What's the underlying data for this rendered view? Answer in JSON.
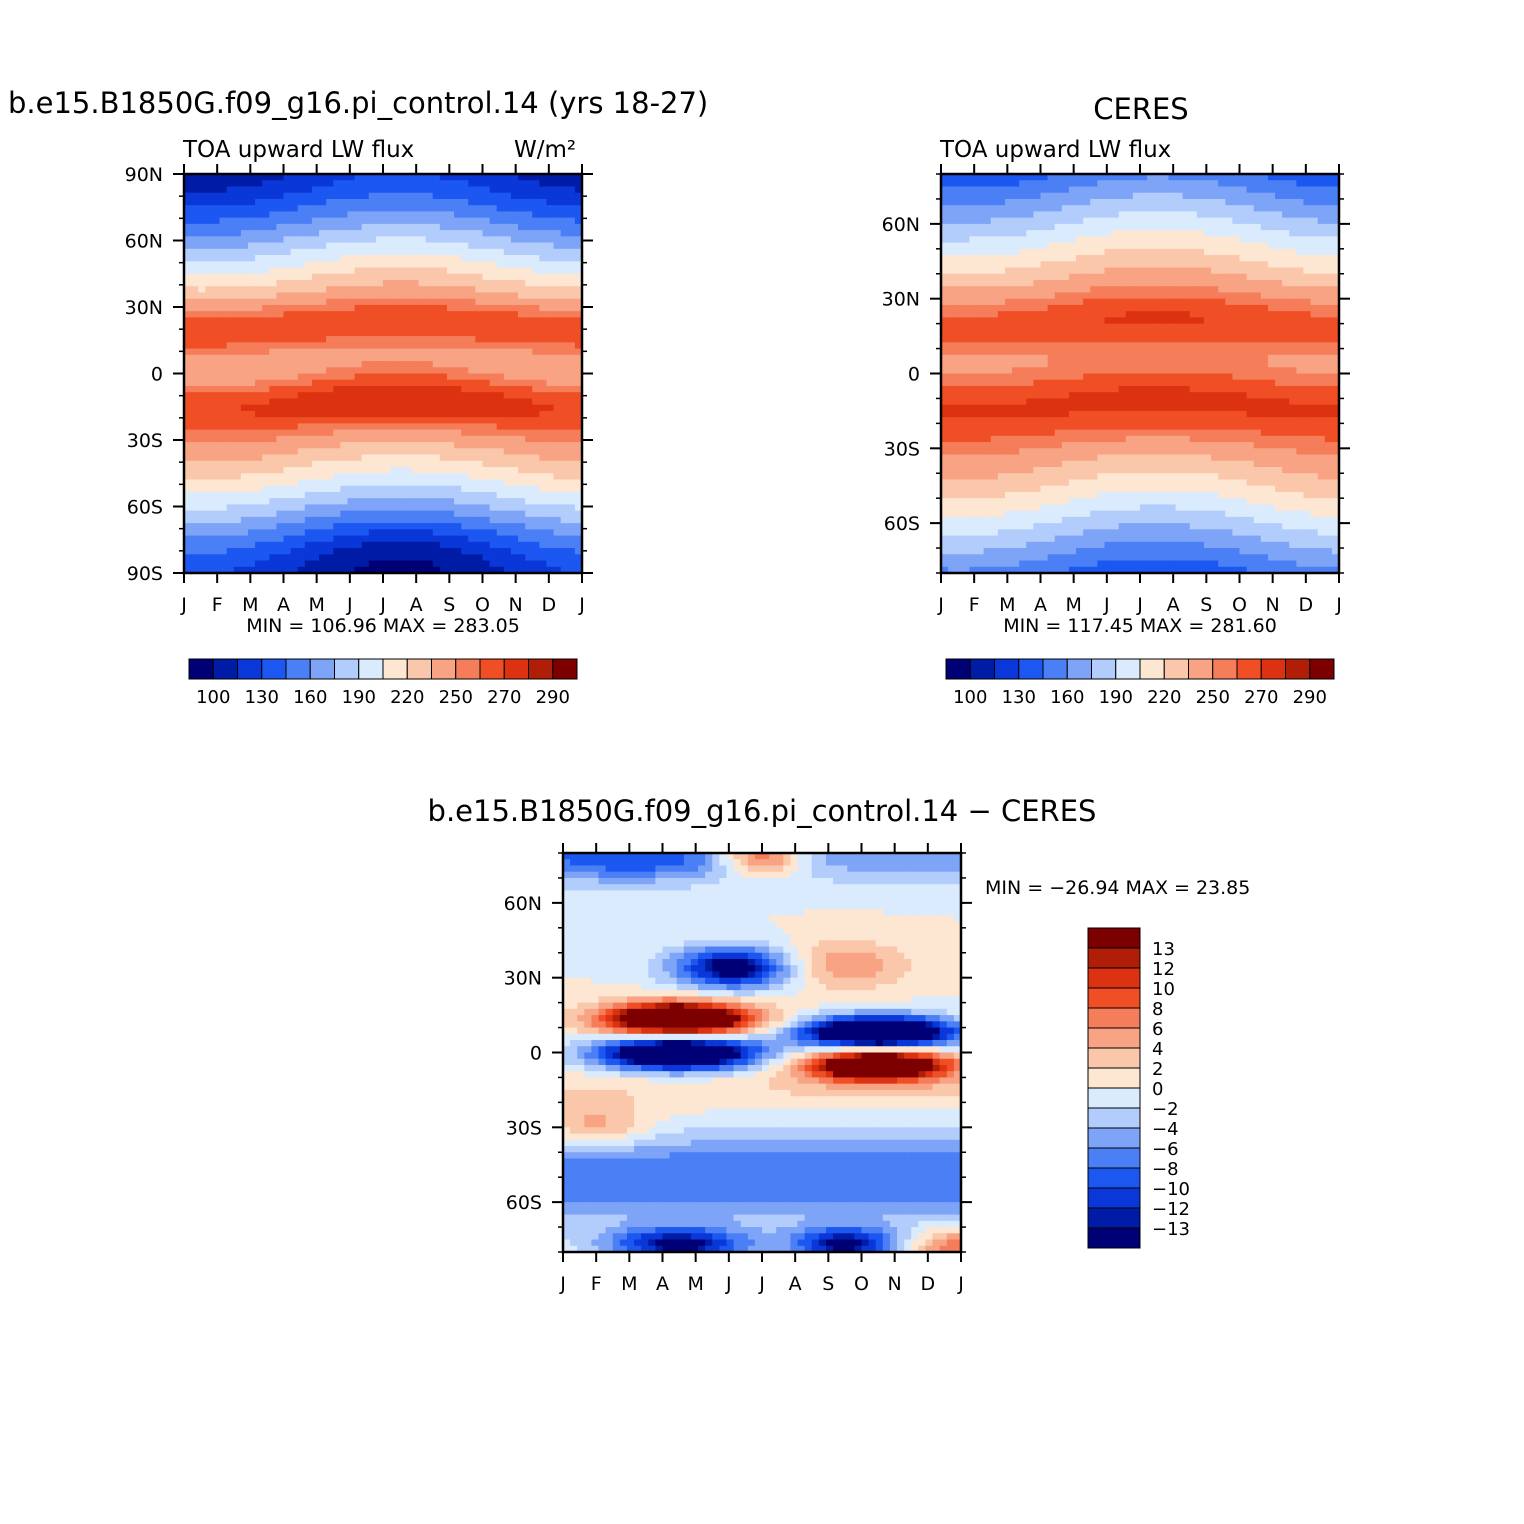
{
  "chart_data": [
    {
      "type": "heatmap",
      "id": "model",
      "title": "b.e15.B1850G.f09_g16.pi_control.14 (yrs 18-27)",
      "subtitle": "TOA upward LW flux",
      "units": "W/m²",
      "x_tick_labels": [
        "J",
        "F",
        "M",
        "A",
        "M",
        "J",
        "J",
        "A",
        "S",
        "O",
        "N",
        "D",
        "J"
      ],
      "y_tick_labels": [
        "90N",
        "60N",
        "30N",
        "0",
        "30S",
        "60S",
        "90S"
      ],
      "y_tick_values": [
        90,
        60,
        30,
        0,
        -30,
        -60,
        -90
      ],
      "ylim": [
        -90,
        90
      ],
      "stats": "MIN = 106.96 MAX = 283.05",
      "min": 106.96,
      "max": 283.05,
      "colorbar_labels": [
        "100",
        "130",
        "160",
        "190",
        "220",
        "250",
        "270",
        "290"
      ]
    },
    {
      "type": "heatmap",
      "id": "ceres",
      "title": "CERES",
      "subtitle": "TOA upward LW flux",
      "x_tick_labels": [
        "J",
        "F",
        "M",
        "A",
        "M",
        "J",
        "J",
        "A",
        "S",
        "O",
        "N",
        "D",
        "J"
      ],
      "y_tick_labels": [
        "60N",
        "30N",
        "0",
        "30S",
        "60S"
      ],
      "y_tick_values": [
        60,
        30,
        0,
        -30,
        -60
      ],
      "ylim": [
        -80,
        80
      ],
      "stats": "MIN = 117.45 MAX = 281.60",
      "min": 117.45,
      "max": 281.6,
      "colorbar_labels": [
        "100",
        "130",
        "160",
        "190",
        "220",
        "250",
        "270",
        "290"
      ]
    },
    {
      "type": "heatmap",
      "id": "diff",
      "title": "b.e15.B1850G.f09_g16.pi_control.14 − CERES",
      "x_tick_labels": [
        "J",
        "F",
        "M",
        "A",
        "M",
        "J",
        "J",
        "A",
        "S",
        "O",
        "N",
        "D",
        "J"
      ],
      "y_tick_labels": [
        "60N",
        "30N",
        "0",
        "30S",
        "60S"
      ],
      "y_tick_values": [
        60,
        30,
        0,
        -30,
        -60
      ],
      "ylim": [
        -80,
        80
      ],
      "stats": "MIN = −26.94 MAX =  23.85",
      "min": -26.94,
      "max": 23.85,
      "colorbar_labels": [
        "13",
        "12",
        "10",
        "8",
        "6",
        "4",
        "2",
        "0",
        "−2",
        "−4",
        "−6",
        "−8",
        "−10",
        "−12",
        "−13"
      ]
    }
  ],
  "palette": {
    "abs": [
      "#000076",
      "#001ca6",
      "#0a37d8",
      "#1b57f0",
      "#4a7ff5",
      "#7ea4f8",
      "#b2ccfb",
      "#d9ebfd",
      "#fde6d2",
      "#fbc7aa",
      "#f8a484",
      "#f57d5a",
      "#f04e24",
      "#dc3212",
      "#b01e08",
      "#7c0000"
    ],
    "diff": [
      "#000076",
      "#001ca6",
      "#0a37d8",
      "#1b57f0",
      "#4a7ff5",
      "#7ea4f8",
      "#b2ccfb",
      "#d9ebfd",
      "#fde6d2",
      "#fbc7aa",
      "#f8a484",
      "#f57d5a",
      "#f04e24",
      "#dc3212",
      "#b01e08",
      "#7c0000"
    ]
  }
}
